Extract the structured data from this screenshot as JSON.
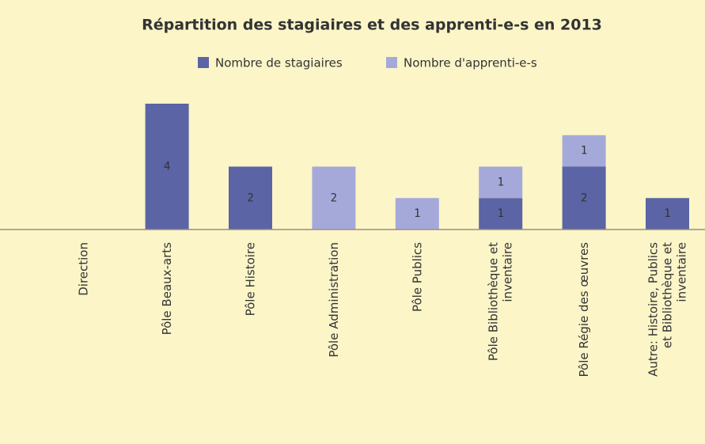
{
  "chart_data": {
    "type": "stacked_bar",
    "title": "Répartition des stagiaires et des apprenti-e-s en 2013",
    "categories": [
      "Direction",
      "Pôle Beaux-arts",
      "Pôle Histoire",
      "Pôle Administration",
      "Pôle Publics",
      "Pôle Bibliothèque et inventaire",
      "Pôle Régie des œuvres",
      "Autre: Histoire, Publics et Bibliothèque et inventaire"
    ],
    "series": [
      {
        "name": "Nombre de stagiaires",
        "color": "#5b64a4",
        "values": [
          null,
          4,
          2,
          null,
          null,
          1,
          2,
          1
        ]
      },
      {
        "name": "Nombre d'apprenti-e-s",
        "color": "#a5a9d9",
        "values": [
          null,
          null,
          null,
          2,
          1,
          1,
          1,
          null
        ]
      }
    ]
  }
}
